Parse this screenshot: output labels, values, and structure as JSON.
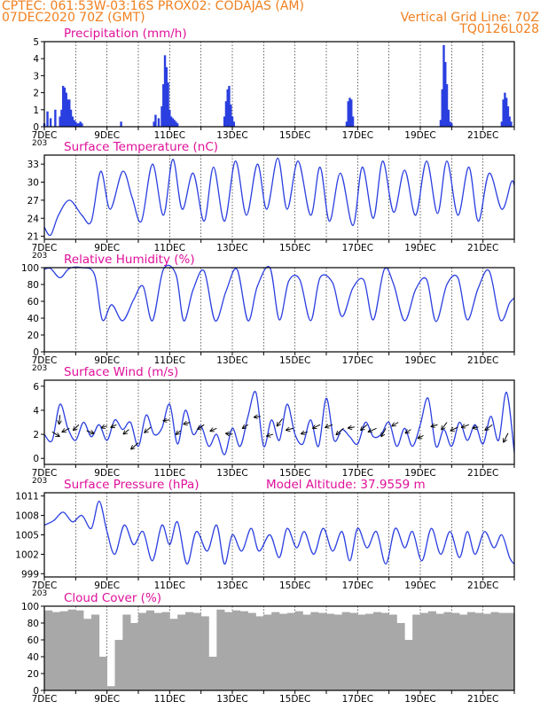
{
  "header": {
    "line1_left": "CPTEC:    061:53W-03:16S   PROX02: CODAJAS (AM)",
    "line2_left": "07DEC2020 70Z (GMT)",
    "line2_right": "Vertical Grid Line: 70Z",
    "line3_right": "TQ0126L028"
  },
  "colors": {
    "header": "#f08020",
    "title": "#e0109a",
    "line": "#2a3fe0",
    "cloud": "#a8a8a8"
  },
  "chart_data": [
    {
      "type": "bar",
      "title": "Precipitation (mm/h)",
      "ylim": [
        0,
        5
      ],
      "yticks": [
        "0",
        "1",
        "2",
        "3",
        "4",
        "5"
      ],
      "xticks": [
        "7DEC",
        "9DEC",
        "11DEC",
        "13DEC",
        "15DEC",
        "17DEC",
        "19DEC",
        "21DEC"
      ],
      "xcut": "203",
      "x": [
        7.0,
        7.1,
        7.2,
        7.35,
        7.5,
        7.55,
        7.6,
        7.65,
        7.7,
        7.75,
        7.8,
        7.85,
        7.9,
        7.95,
        8.0,
        8.05,
        8.1,
        8.15,
        8.2,
        9.45,
        10.5,
        10.55,
        10.65,
        10.75,
        10.8,
        10.85,
        10.9,
        10.95,
        11.0,
        11.05,
        11.1,
        11.15,
        11.2,
        11.25,
        12.75,
        12.8,
        12.85,
        12.9,
        12.95,
        13.0,
        13.05,
        16.65,
        16.7,
        16.75,
        16.8,
        16.85,
        19.65,
        19.7,
        19.75,
        19.8,
        19.85,
        19.9,
        19.95,
        20.0,
        21.6,
        21.65,
        21.7,
        21.75,
        21.8,
        21.85,
        21.9
      ],
      "values": [
        0.2,
        0.9,
        0.5,
        1.0,
        0.6,
        1.0,
        2.4,
        2.3,
        2.0,
        1.6,
        1.6,
        1.0,
        0.6,
        0.4,
        0.3,
        0.2,
        0.2,
        0.3,
        0.2,
        0.3,
        0.3,
        0.7,
        0.5,
        1.2,
        2.5,
        4.2,
        3.5,
        2.6,
        1.0,
        0.6,
        0.5,
        0.4,
        0.3,
        0.2,
        0.6,
        1.5,
        2.2,
        2.4,
        1.3,
        0.6,
        0.3,
        0.3,
        1.5,
        1.7,
        1.6,
        0.6,
        0.4,
        2.2,
        4.8,
        3.8,
        2.5,
        1.0,
        0.3,
        0.2,
        0.3,
        1.6,
        2.0,
        1.7,
        1.2,
        0.6,
        0.3
      ]
    },
    {
      "type": "line",
      "title": "Surface Temperature (nC)",
      "ylim": [
        20.5,
        34.5
      ],
      "yticks": [
        "21",
        "24",
        "27",
        "30",
        "33"
      ],
      "xticks": [
        "7DEC",
        "9DEC",
        "11DEC",
        "13DEC",
        "15DEC",
        "17DEC",
        "19DEC",
        "21DEC"
      ],
      "xcut": "203",
      "x": [
        7.0,
        7.2,
        7.45,
        7.8,
        8.2,
        8.5,
        8.8,
        9.1,
        9.5,
        9.8,
        10.1,
        10.45,
        10.8,
        11.1,
        11.4,
        11.75,
        12.1,
        12.4,
        12.75,
        13.1,
        13.45,
        13.8,
        14.1,
        14.45,
        14.75,
        15.1,
        15.5,
        15.8,
        16.1,
        16.45,
        16.85,
        17.15,
        17.5,
        17.8,
        18.15,
        18.5,
        18.85,
        19.2,
        19.55,
        19.85,
        20.2,
        20.55,
        20.85,
        21.2,
        21.6,
        21.9,
        22.0
      ],
      "values": [
        22.5,
        21.2,
        24.5,
        27.0,
        24.5,
        23.5,
        31.8,
        25.5,
        31.8,
        27.5,
        23.5,
        33.0,
        24.5,
        33.8,
        25.5,
        31.5,
        23.5,
        32.5,
        23.5,
        33.5,
        24.5,
        33.0,
        25.5,
        34.0,
        25.5,
        33.5,
        24.5,
        32.5,
        23.5,
        31.5,
        22.8,
        32.5,
        24.0,
        33.5,
        25.0,
        32.0,
        24.5,
        33.5,
        24.8,
        33.5,
        24.5,
        32.5,
        23.5,
        31.5,
        25.5,
        30.0,
        29.5
      ]
    },
    {
      "type": "line",
      "title": "Relative Humidity (%)",
      "ylim": [
        0,
        100
      ],
      "yticks": [
        "0",
        "20",
        "40",
        "60",
        "80",
        "100"
      ],
      "xticks": [
        "7DEC",
        "9DEC",
        "11DEC",
        "13DEC",
        "15DEC",
        "17DEC",
        "19DEC",
        "21DEC"
      ],
      "xcut": "203",
      "x": [
        7.0,
        7.2,
        7.5,
        7.8,
        8.2,
        8.6,
        8.85,
        9.15,
        9.5,
        9.85,
        10.15,
        10.45,
        10.8,
        11.2,
        11.45,
        11.75,
        12.1,
        12.45,
        12.8,
        13.15,
        13.5,
        13.8,
        14.2,
        14.5,
        14.8,
        15.15,
        15.5,
        15.8,
        16.2,
        16.5,
        16.85,
        17.2,
        17.5,
        17.85,
        18.15,
        18.5,
        18.85,
        19.2,
        19.5,
        19.85,
        20.2,
        20.5,
        20.85,
        21.2,
        21.55,
        21.85,
        22.0
      ],
      "values": [
        98,
        99,
        88,
        99,
        100,
        92,
        38,
        56,
        37,
        62,
        78,
        37,
        98,
        92,
        37,
        74,
        96,
        37,
        72,
        98,
        37,
        78,
        100,
        38,
        84,
        86,
        37,
        88,
        82,
        42,
        76,
        85,
        38,
        98,
        80,
        37,
        74,
        86,
        36,
        80,
        88,
        38,
        76,
        96,
        38,
        58,
        64
      ]
    },
    {
      "type": "line",
      "title": "Surface Wind (m/s)",
      "ylim": [
        -0.5,
        6.5
      ],
      "yticks": [
        "0",
        "2",
        "4",
        "6"
      ],
      "xticks": [
        "7DEC",
        "9DEC",
        "11DEC",
        "13DEC",
        "15DEC",
        "17DEC",
        "19DEC",
        "21DEC"
      ],
      "xcut": "203",
      "x": [
        7.0,
        7.25,
        7.5,
        7.75,
        8.0,
        8.25,
        8.5,
        8.75,
        9.0,
        9.25,
        9.5,
        9.75,
        10.0,
        10.25,
        10.5,
        10.75,
        11.0,
        11.25,
        11.5,
        11.75,
        12.0,
        12.25,
        12.5,
        12.75,
        13.0,
        13.25,
        13.5,
        13.75,
        14.0,
        14.25,
        14.5,
        14.75,
        15.0,
        15.25,
        15.5,
        15.75,
        16.0,
        16.25,
        16.5,
        16.75,
        17.0,
        17.25,
        17.5,
        17.75,
        18.0,
        18.25,
        18.5,
        18.75,
        19.0,
        19.25,
        19.5,
        19.75,
        20.0,
        20.25,
        20.5,
        20.75,
        21.0,
        21.25,
        21.5,
        21.75,
        22.0
      ],
      "values": [
        2.0,
        1.5,
        4.5,
        2.5,
        1.5,
        3.0,
        1.8,
        2.8,
        1.5,
        3.2,
        2.4,
        3.0,
        1.0,
        3.6,
        2.0,
        2.5,
        4.5,
        1.2,
        4.0,
        2.0,
        2.7,
        1.0,
        2.0,
        0.3,
        2.5,
        1.0,
        3.5,
        5.5,
        1.0,
        3.2,
        1.5,
        4.5,
        2.0,
        1.2,
        3.2,
        1.0,
        5.0,
        1.5,
        2.4,
        1.8,
        1.2,
        3.0,
        1.8,
        2.0,
        3.0,
        1.0,
        2.5,
        1.0,
        2.8,
        5.0,
        1.0,
        2.4,
        1.0,
        3.0,
        1.5,
        2.8,
        1.2,
        3.5,
        1.5,
        5.5,
        0.5
      ],
      "arrows": {
        "x": [
          7.25,
          7.5,
          7.8,
          8.1,
          8.35,
          9.0,
          9.3,
          9.7,
          10.0,
          10.4,
          11.0,
          11.35,
          11.65,
          12.1,
          12.5,
          13.0,
          13.5,
          13.9,
          14.3,
          14.6,
          14.95,
          15.4,
          15.8,
          16.2,
          16.55,
          16.9,
          17.3,
          17.6,
          17.9,
          18.3,
          18.7,
          19.1,
          19.55,
          19.85,
          20.2,
          20.55,
          20.85,
          21.3,
          21.8
        ],
        "dx": [
          8,
          -1,
          -8,
          -6,
          8,
          -6,
          -6,
          -6,
          -8,
          -7,
          -7,
          -5,
          -7,
          -7,
          -7,
          -7,
          -6,
          -7,
          -7,
          -6,
          -8,
          -7,
          -8,
          -8,
          -8,
          -7,
          -7,
          -9,
          -5,
          -7,
          -6,
          -6,
          -7,
          -6,
          -8,
          -8,
          -6,
          -8,
          -5
        ],
        "dy": [
          -5,
          -10,
          -4,
          -6,
          -3,
          -2,
          -3,
          -5,
          -7,
          -6,
          -1,
          -4,
          -2,
          -5,
          -3,
          1,
          -4,
          -1,
          -2,
          -8,
          -2,
          -2,
          -4,
          -3,
          -7,
          -1,
          -6,
          -4,
          -9,
          -4,
          -4,
          -3,
          -2,
          -8,
          -4,
          -3,
          -1,
          -6,
          -10
        ],
        "ys": [
          2.2,
          3.6,
          2.5,
          2.8,
          2.3,
          2.7,
          2.8,
          2.4,
          1.3,
          2.6,
          3.2,
          2.3,
          3.0,
          2.8,
          2.5,
          2.0,
          2.8,
          3.5,
          2.0,
          3.3,
          2.5,
          2.2,
          2.8,
          2.8,
          2.5,
          2.6,
          2.8,
          2.5,
          2.5,
          3.0,
          2.4,
          1.9,
          2.8,
          3.0,
          2.6,
          2.8,
          2.6,
          2.8,
          2.1
        ]
      }
    },
    {
      "type": "line",
      "title": "Surface Pressure (hPa)",
      "annotation": "Model Altitude: 37.9559 m",
      "ylim": [
        998.5,
        1011.5
      ],
      "yticks": [
        "999",
        "1002",
        "1005",
        "1008",
        "1011"
      ],
      "xticks": [
        "7DEC",
        "9DEC",
        "11DEC",
        "13DEC",
        "15DEC",
        "17DEC",
        "19DEC",
        "21DEC"
      ],
      "xcut": "203",
      "x": [
        7.0,
        7.3,
        7.6,
        7.9,
        8.2,
        8.5,
        8.75,
        9.0,
        9.25,
        9.55,
        9.85,
        10.15,
        10.45,
        10.75,
        11.0,
        11.25,
        11.55,
        11.85,
        12.2,
        12.5,
        12.75,
        13.0,
        13.3,
        13.6,
        13.85,
        14.2,
        14.5,
        14.75,
        15.05,
        15.3,
        15.6,
        15.9,
        16.2,
        16.5,
        16.75,
        17.0,
        17.3,
        17.6,
        17.9,
        18.2,
        18.5,
        18.75,
        19.05,
        19.35,
        19.65,
        19.95,
        20.25,
        20.5,
        20.75,
        21.05,
        21.35,
        21.6,
        21.85,
        22.0
      ],
      "values": [
        1006.5,
        1007.2,
        1008.5,
        1007.0,
        1008.0,
        1006.0,
        1010.2,
        1005.5,
        1002.0,
        1006.5,
        1003.5,
        1005.5,
        1001.0,
        1006.5,
        1003.5,
        1007.0,
        1000.5,
        1005.5,
        1002.5,
        1006.5,
        1000.5,
        1005.0,
        1002.5,
        1006.0,
        1002.5,
        1005.0,
        1001.5,
        1006.0,
        1003.0,
        1005.5,
        1002.0,
        1006.0,
        1002.5,
        1005.5,
        1001.0,
        1006.0,
        1003.0,
        1005.5,
        1000.5,
        1006.0,
        1003.0,
        1005.5,
        1001.0,
        1006.0,
        1002.0,
        1005.5,
        1001.5,
        1005.5,
        1002.0,
        1005.5,
        1003.0,
        1005.0,
        1001.5,
        1000.5
      ]
    },
    {
      "type": "bar",
      "title": "Cloud Cover (%)",
      "ylim": [
        0,
        100
      ],
      "yticks": [
        "0",
        "20",
        "40",
        "60",
        "80",
        "100"
      ],
      "xticks": [
        "7DEC",
        "9DEC",
        "11DEC",
        "13DEC",
        "15DEC",
        "17DEC",
        "19DEC",
        "21DEC"
      ],
      "xcut": "203",
      "x": [
        7.0,
        7.25,
        7.5,
        7.75,
        8.0,
        8.25,
        8.5,
        8.75,
        9.0,
        9.25,
        9.5,
        9.75,
        10.0,
        10.25,
        10.5,
        10.75,
        11.0,
        11.25,
        11.5,
        11.75,
        12.0,
        12.25,
        12.5,
        12.75,
        13.0,
        13.25,
        13.5,
        13.75,
        14.0,
        14.25,
        14.5,
        14.75,
        15.0,
        15.25,
        15.5,
        15.75,
        16.0,
        16.25,
        16.5,
        16.75,
        17.0,
        17.25,
        17.5,
        17.75,
        18.0,
        18.25,
        18.5,
        18.75,
        19.0,
        19.25,
        19.5,
        19.75,
        20.0,
        20.25,
        20.5,
        20.75,
        21.0,
        21.25,
        21.5,
        21.75
      ],
      "values": [
        95,
        93,
        94,
        96,
        95,
        85,
        90,
        40,
        5,
        60,
        90,
        80,
        92,
        95,
        92,
        93,
        85,
        90,
        93,
        92,
        88,
        40,
        96,
        93,
        95,
        94,
        92,
        88,
        90,
        93,
        91,
        92,
        94,
        90,
        93,
        92,
        91,
        90,
        93,
        92,
        90,
        91,
        93,
        92,
        90,
        80,
        60,
        90,
        92,
        94,
        91,
        93,
        92,
        90,
        93,
        92,
        91,
        93,
        92,
        92
      ]
    }
  ]
}
